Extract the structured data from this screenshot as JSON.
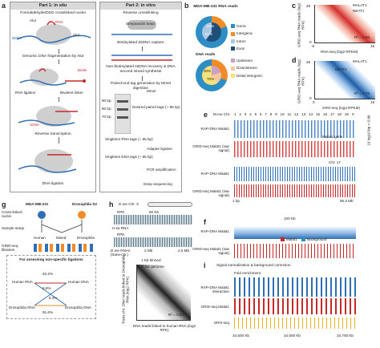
{
  "panel_a": {
    "label": "a",
    "part1_title": "Part 1: in situ",
    "part2_title": "Part 2: in vitro",
    "step_crosslink": "Formaldehyde/DSG crosslinked nuclei",
    "sdna": "sDNA",
    "alui_1": "AluI",
    "alui_2": "AluI",
    "rna": "RNA",
    "step_frag": "Genomic DNA fragmentation by AluI",
    "biotin": "Biotin",
    "step_ligation": "RNA ligation",
    "bivalent": "Bivalent linker",
    "cdna": "cDNA",
    "step_rt": "Reverse transcription",
    "step_dnalig": "DNA ligation",
    "step_revcross": "Reverse crosslinking",
    "streptavidin": "Streptavidin bead",
    "step_capture": "Biotinylated dsDNA capture",
    "step_recovery": "Non-biotinylated ssDNA recovery & DNA second strand synthesis",
    "step_mmei": "Paired-end tag generation by MmeI digestion",
    "mmei": "MmeI",
    "bp90": "90 bp",
    "bp80": "80 bp",
    "bp70": "70 bp",
    "desired": "Desired paired tags (~ 85 bp)",
    "singleton_rna": "Singleton RNA tags (~ 65 bp)",
    "step_adapter": "Adapter ligation",
    "singleton_dna": "Singleton DNA tags (~ 65 bp)",
    "step_pcr": "PCR amplification",
    "step_seq": "Deep sequencing"
  },
  "panel_b": {
    "label": "b",
    "title": "MDA-MB-231 RNA reads",
    "rna_pct_small": "19%",
    "rna_pct_large": "81%",
    "dna_title": "DNA reads",
    "dna_pct_small": "30%",
    "dna_pct_large": "70%",
    "legend": [
      {
        "name": "Genic",
        "color": "#2c8ec4"
      },
      {
        "name": "Intergenic",
        "color": "#f28c28"
      },
      {
        "name": "Intron",
        "color": "#a9c7e3"
      },
      {
        "name": "Exon",
        "color": "#1f4e79"
      },
      {
        "name": "Upstream",
        "color": "#c8a2c8"
      },
      {
        "name": "Downstream",
        "color": "#f5c8a0"
      },
      {
        "name": "Distal intergenic",
        "color": "#f7e27a"
      }
    ]
  },
  "panel_c": {
    "label": "c",
    "ylabel": "GRID-seq RNA reads (log2 RPK)",
    "xlabel": "RNA-seq (log2 RPKM)",
    "malat1": "MALAT1",
    "neat1": "NEAT1",
    "r2": "R² = 0.66",
    "x_min": "-5",
    "x_max": "15",
    "y_max": "25",
    "y_min": "0"
  },
  "panel_d": {
    "label": "d",
    "ylabel": "GRID-seq RNA reads (log2 RPK)",
    "xlabel": "GRO-seq (log2 RPKM)",
    "malat1": "MALAT1",
    "neat1": "NEAT1",
    "r2": "R² = 0.78",
    "x_min": "0",
    "x_max": "19",
    "y_max": "25",
    "y_min": "0"
  },
  "panel_e": {
    "label": "e",
    "chr_title": "M.mu Chr.",
    "chromosomes": [
      "1",
      "2",
      "3",
      "4",
      "5",
      "6",
      "7",
      "8",
      "9",
      "10",
      "11",
      "12",
      "13",
      "14",
      "15",
      "16",
      "17",
      "18",
      "19",
      "X"
    ],
    "track1": "RAP-DNA Malat1",
    "track2": "GRID-seq Malat1 (raw signal)",
    "scale": "10 log10 bp × 0.86",
    "malat1_gene": "Malat1 gene",
    "chr17": "Chr. 17",
    "mb10": "10 Mb",
    "bp1": "1 bp",
    "bp_end": "95.3 Mb"
  },
  "panel_f": {
    "label": "f",
    "track1": "RAP-DNA Malat1",
    "track2": "GRID-seq Malat1 (raw signal)",
    "kb100": "100 Kb",
    "legend_malat1": "Malat1",
    "legend_bg": "Background"
  },
  "panel_g": {
    "label": "g",
    "title_human": "MDA-MB-231",
    "title_fly": "Drosophila S2",
    "row1": "Cross-linked nuclei",
    "row2": "Sample setup",
    "human": "Human",
    "mixed": "Mixed",
    "drosophila": "Drosophila",
    "row3": "GRID-seq libraries",
    "nonspecific": "For assessing non-specific ligations",
    "human_rna": "Human RNA",
    "human_dna": "Human DNA",
    "dros_rna": "Drosophila RNA",
    "dros_dna": "Drosophila DNA",
    "pct1": "93.2%",
    "pct2": "6.8%",
    "pct3": "91.6%",
    "pct4": "8.4%"
  },
  "panel_h": {
    "label": "h",
    "chr": "D.me Chr. X",
    "rpk1": "RPK",
    "kb50": "50 Kb",
    "track1": "H.sa RNA",
    "rpk2": "RPK",
    "track2": "D.me RNAs (trans-chr.)",
    "mb2": "2 Mb",
    "mb25": "2.5 Mb",
    "ylabel": "Trans-chr. DNA reads linked to Drosophila RNA (log2 RPK)",
    "xlabel": "DNA reads linked to human RNA (log2 RPK)",
    "binned": "1 Kb binned",
    "genome": "D.me genome",
    "r2": "R² = 0.84"
  },
  "panel_i": {
    "label": "i",
    "norm": "Signal normalization & background correction",
    "fold": "Fold enrichment",
    "track1": "RAP-DNA Malat1 interaction",
    "track2": "GRID-seq Malat1",
    "track3": "GRO-seq",
    "pos1": "34,500 Kb",
    "pos2": "34,600 Kb",
    "pos3": "34,700 Kb"
  },
  "colors": {
    "blue": "#2f6fb5",
    "red": "#c62828",
    "gray": "#777777",
    "orange": "#f28c28"
  }
}
